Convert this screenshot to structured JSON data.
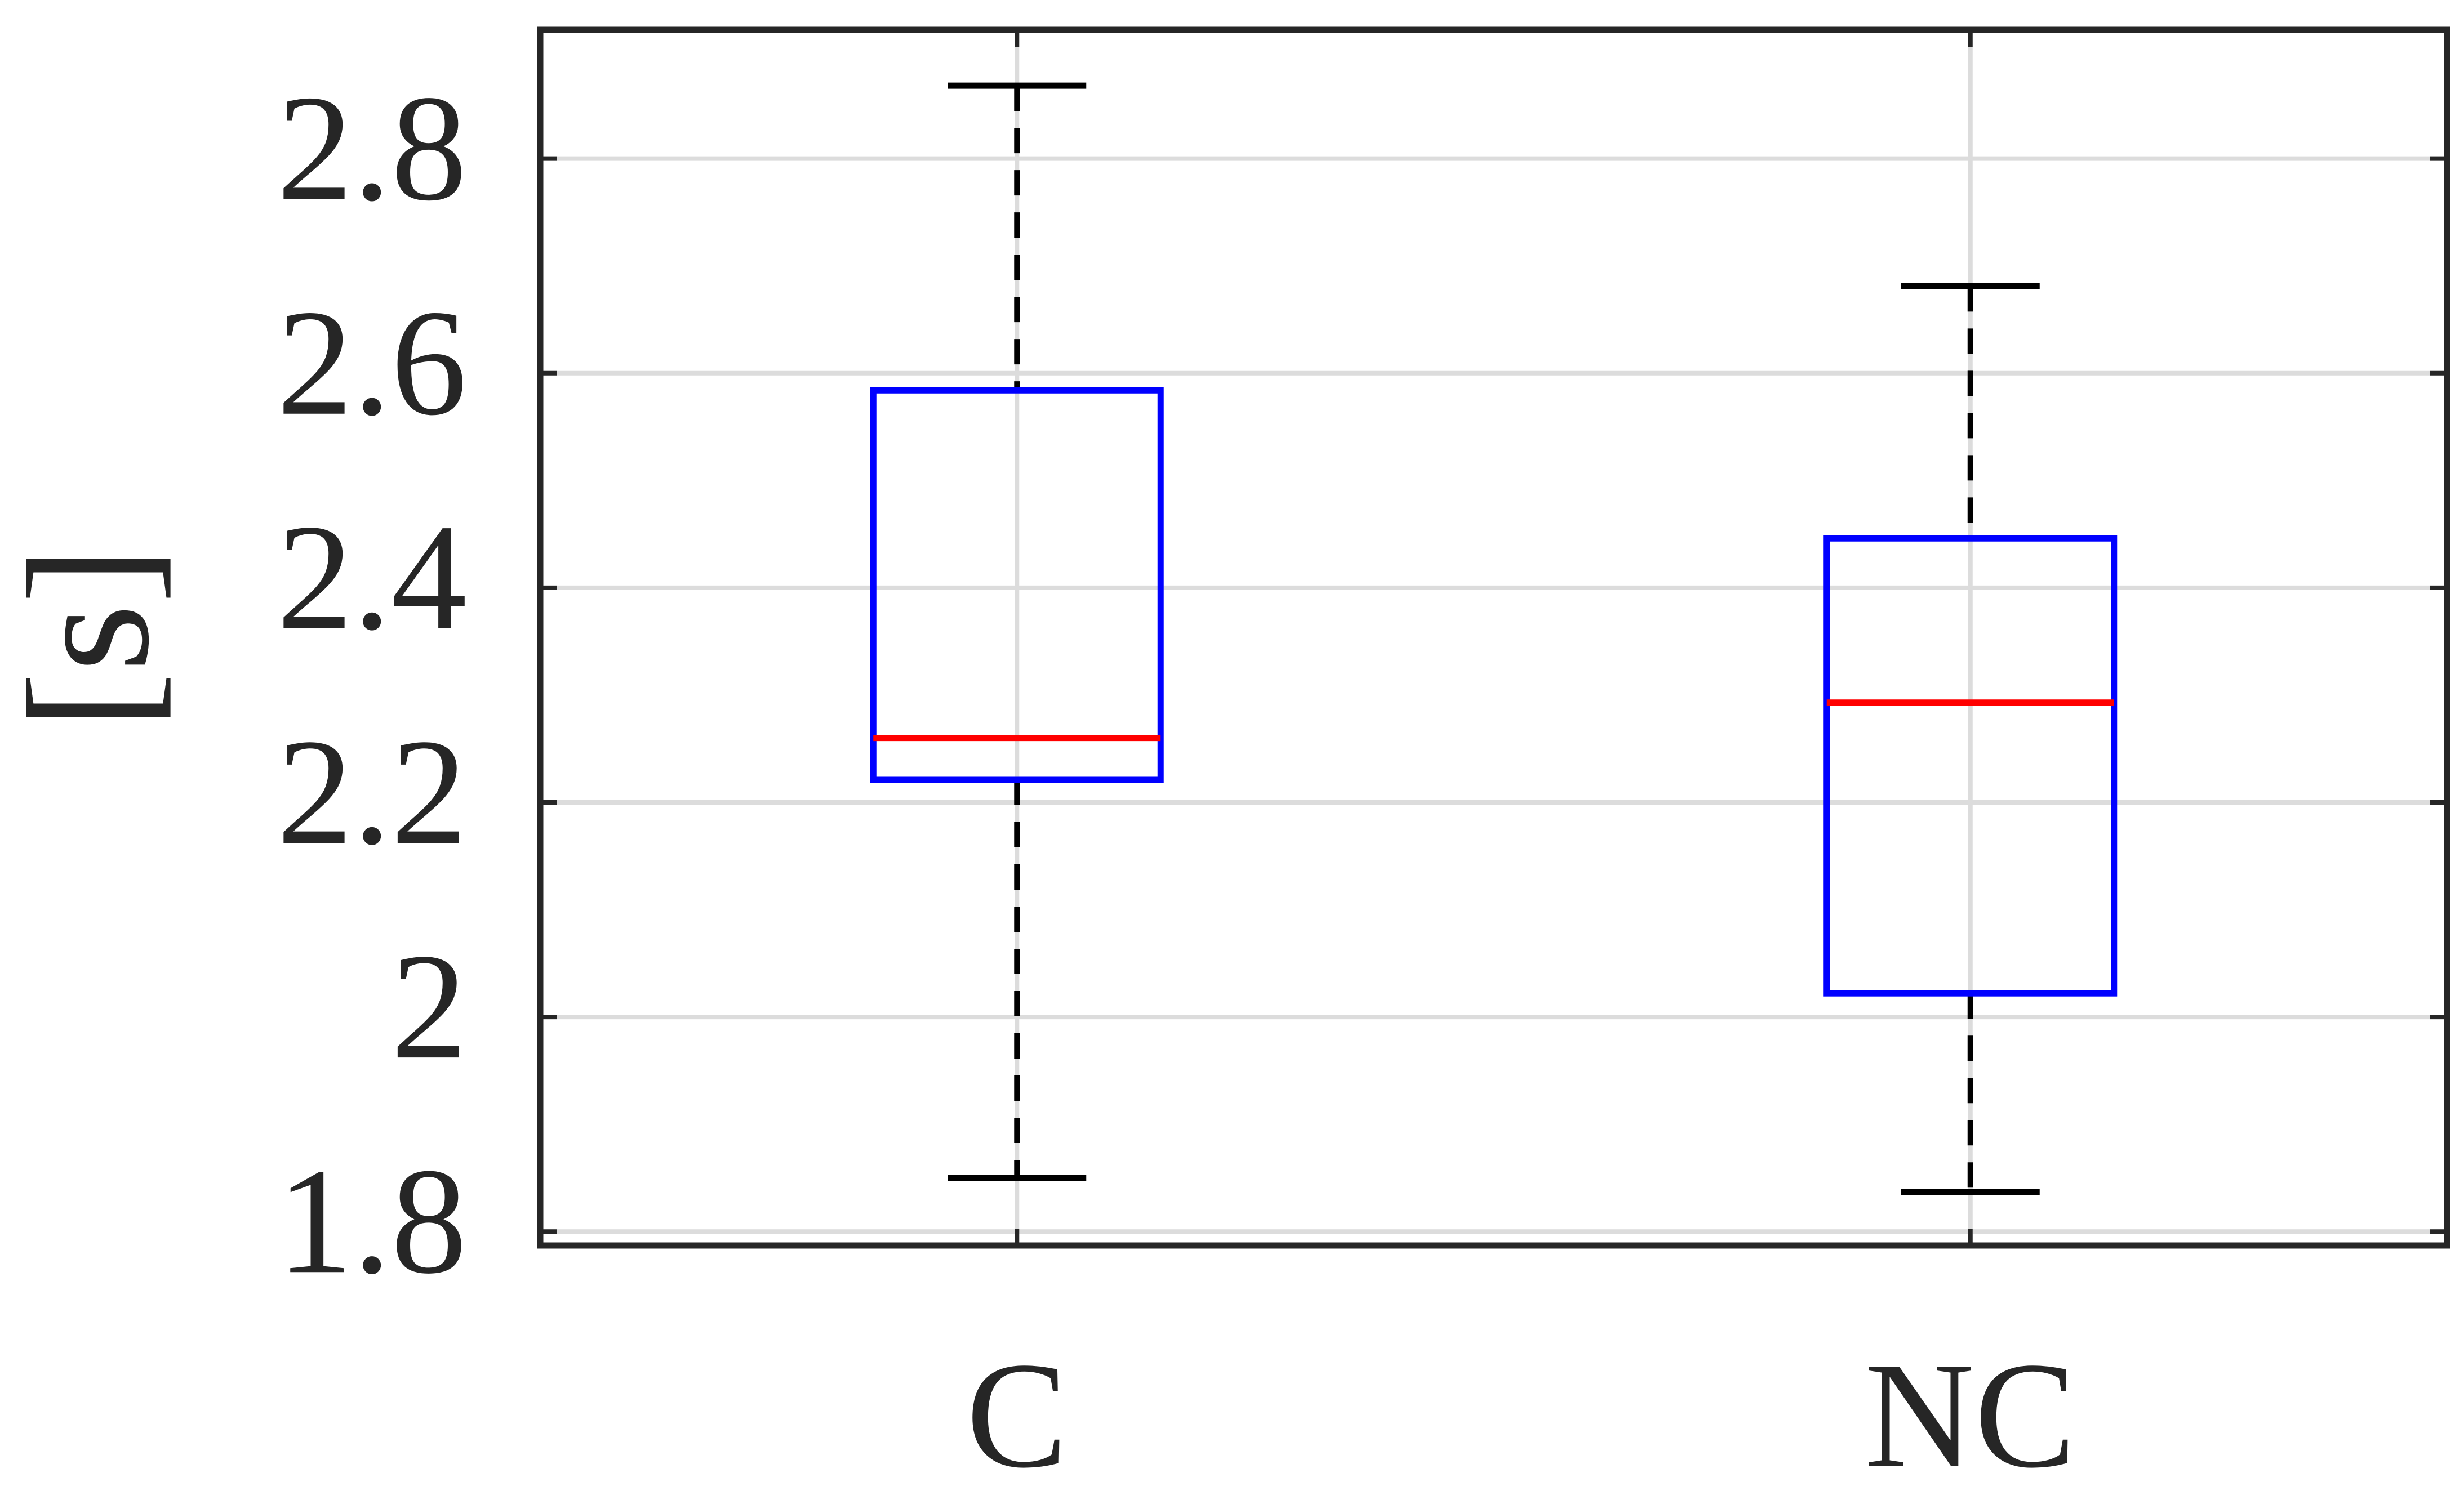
{
  "chart_data": {
    "type": "box",
    "ylabel": "[s]",
    "categories": [
      "C",
      "NC"
    ],
    "boxes": [
      {
        "min": 1.85,
        "q1": 2.221,
        "median": 2.26,
        "q3": 2.584,
        "max": 2.868
      },
      {
        "min": 1.837,
        "q1": 2.022,
        "median": 2.293,
        "q3": 2.446,
        "max": 2.681
      }
    ],
    "box_color": "#0000ff",
    "median_color": "#ff0000",
    "whisker_color": "#000000",
    "ylim": [
      1.787,
      2.92
    ],
    "yticks": [
      1.8,
      2,
      2.2,
      2.4,
      2.6,
      2.8
    ],
    "grid": true
  }
}
